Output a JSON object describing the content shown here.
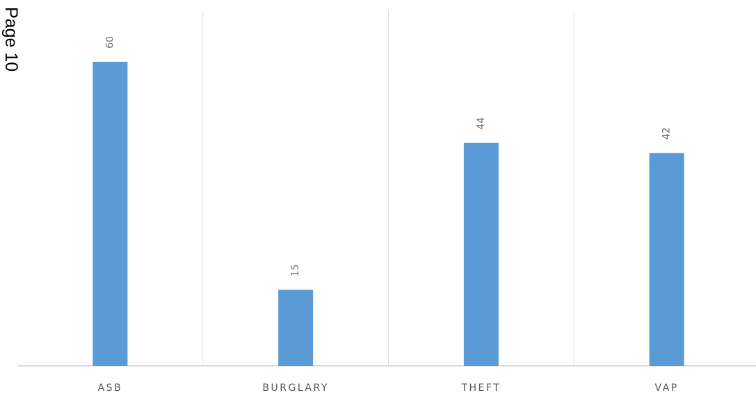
{
  "page_label": "Page 10",
  "chart_data": {
    "type": "bar",
    "categories": [
      "ASB",
      "BURGLARY",
      "THEFT",
      "VAP"
    ],
    "values": [
      60,
      15,
      44,
      42
    ],
    "data_labels": [
      "60",
      "15",
      "44",
      "42"
    ],
    "ylim": [
      0,
      70
    ],
    "bar_color": "#5b9bd5",
    "gridlines": "vertical category separators",
    "legend": "none",
    "title": "",
    "xlabel": "",
    "ylabel": ""
  }
}
